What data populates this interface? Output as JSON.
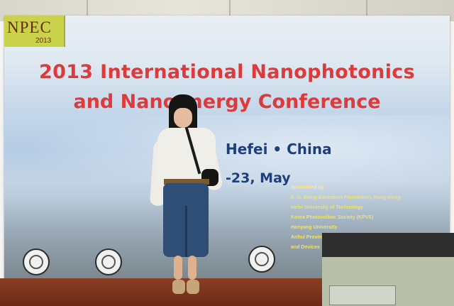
{
  "photo": {
    "logo": {
      "text": "NPEC",
      "year": "2013"
    },
    "banner": {
      "title_line1": "2013 International Nanophotonics",
      "title_line2": "and Nanoenergy Conference",
      "location": "Hefei • China",
      "dates": "-23, May",
      "sponsor_heading": "Sponsored by",
      "sponsors": [
        "K. C. Wong Education Foundation, Hong Kong",
        "Hefei University of Technology",
        "Korea Photovoltaic Society (KPVS)",
        "Hanyang University",
        "Anhui Provincial Key Lab of Advanced Functional Materials",
        "and Devices"
      ]
    }
  }
}
